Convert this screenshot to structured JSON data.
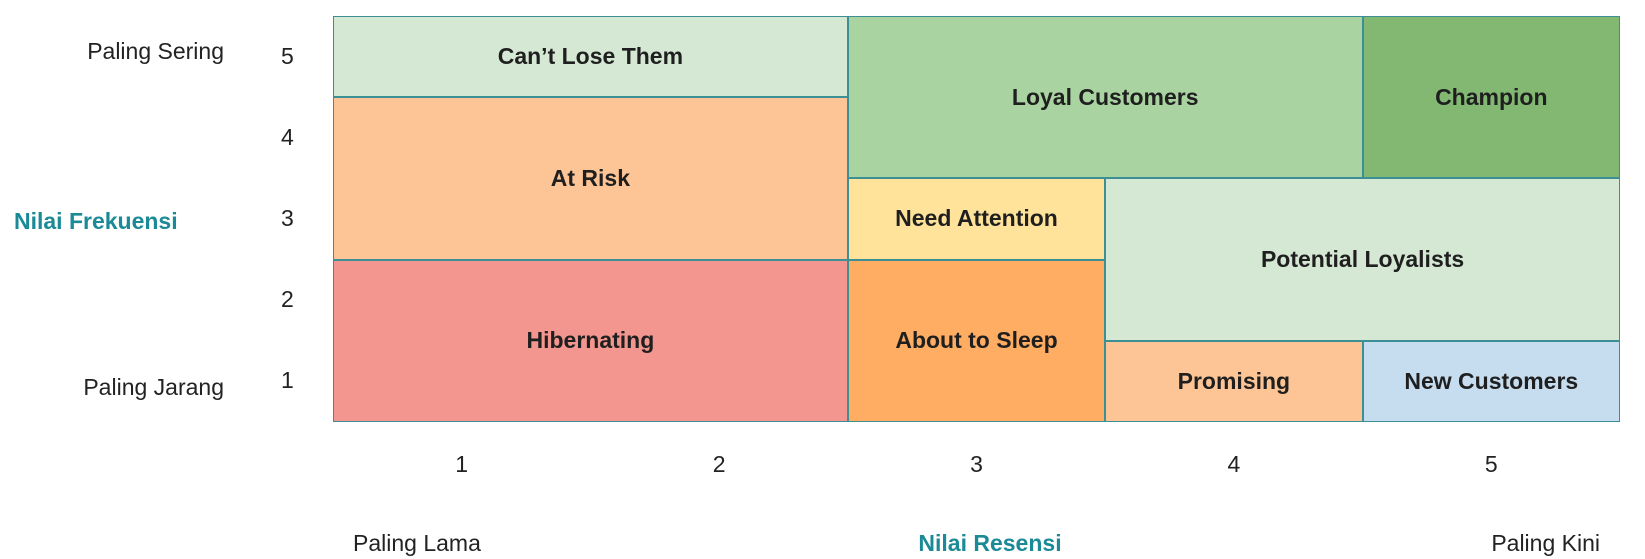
{
  "y_axis": {
    "title": "Nilai Frekuensi",
    "top_label": "Paling Sering",
    "bottom_label": "Paling Jarang",
    "ticks": [
      "5",
      "4",
      "3",
      "2",
      "1"
    ]
  },
  "x_axis": {
    "title": "Nilai Resensi",
    "left_label": "Paling Lama",
    "right_label": "Paling Kini",
    "ticks": [
      "1",
      "2",
      "3",
      "4",
      "5"
    ]
  },
  "colors": {
    "border": "#3b8f95",
    "axis_title": "#1a8a96"
  },
  "segments": [
    {
      "label": "Can’t Lose Them",
      "recency": [
        1,
        2
      ],
      "frequency": [
        5,
        5
      ],
      "color": "#d5e8d4"
    },
    {
      "label": "Loyal Customers",
      "recency": [
        3,
        4
      ],
      "frequency": [
        4,
        5
      ],
      "color": "#a9d4a2"
    },
    {
      "label": "Champion",
      "recency": [
        5,
        5
      ],
      "frequency": [
        4,
        5
      ],
      "color": "#82b872"
    },
    {
      "label": "At Risk",
      "recency": [
        1,
        2
      ],
      "frequency": [
        3,
        4
      ],
      "color": "#fdc596"
    },
    {
      "label": "Need Attention",
      "recency": [
        3,
        3
      ],
      "frequency": [
        3,
        3
      ],
      "color": "#ffe39a"
    },
    {
      "label": "Potential Loyalists",
      "recency": [
        4,
        5
      ],
      "frequency": [
        2,
        3
      ],
      "color": "#d5e8d4"
    },
    {
      "label": "Hibernating",
      "recency": [
        1,
        2
      ],
      "frequency": [
        1,
        2
      ],
      "color": "#f3968f"
    },
    {
      "label": "About to Sleep",
      "recency": [
        3,
        3
      ],
      "frequency": [
        1,
        2
      ],
      "color": "#ffad63"
    },
    {
      "label": "Promising",
      "recency": [
        4,
        4
      ],
      "frequency": [
        1,
        1
      ],
      "color": "#fdc596"
    },
    {
      "label": "New Customers",
      "recency": [
        5,
        5
      ],
      "frequency": [
        1,
        1
      ],
      "color": "#c6dcef"
    }
  ]
}
